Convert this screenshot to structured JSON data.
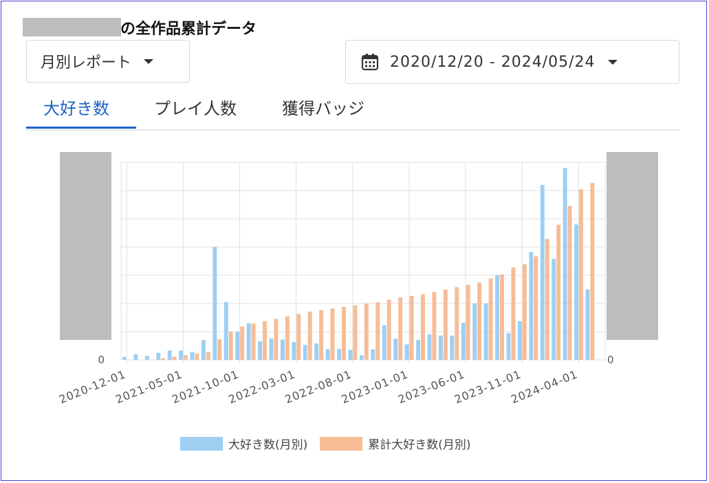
{
  "header": {
    "title": "の全作品累計データ"
  },
  "report_select": {
    "value": "月別レポート"
  },
  "date_range": {
    "value": "2020/12/20 - 2024/05/24"
  },
  "tabs": [
    {
      "label": "大好き数",
      "active": true
    },
    {
      "label": "プレイ人数",
      "active": false
    },
    {
      "label": "獲得バッジ",
      "active": false
    }
  ],
  "colors": {
    "monthly": "#9ecff3",
    "cumulative": "#f6bd97",
    "accent": "#1d63c6"
  },
  "chart_data": {
    "type": "bar",
    "title": "",
    "x_ticks": [
      "2020-12-01",
      "2021-05-01",
      "2021-10-01",
      "2022-03-01",
      "2022-08-01",
      "2023-01-01",
      "2023-06-01",
      "2023-11-01",
      "2024-04-01"
    ],
    "y_left_zero_label": "0",
    "y_right_zero_label": "0",
    "grid": true,
    "legend_position": "bottom",
    "categories": [
      "2020-12",
      "2021-01",
      "2021-02",
      "2021-03",
      "2021-04",
      "2021-05",
      "2021-06",
      "2021-07",
      "2021-08",
      "2021-09",
      "2021-10",
      "2021-11",
      "2021-12",
      "2022-01",
      "2022-02",
      "2022-03",
      "2022-04",
      "2022-05",
      "2022-06",
      "2022-07",
      "2022-08",
      "2022-09",
      "2022-10",
      "2022-11",
      "2022-12",
      "2023-01",
      "2023-02",
      "2023-03",
      "2023-04",
      "2023-05",
      "2023-06",
      "2023-07",
      "2023-08",
      "2023-09",
      "2023-10",
      "2023-11",
      "2023-12",
      "2024-01",
      "2024-02",
      "2024-03",
      "2024-04",
      "2024-05"
    ],
    "series": [
      {
        "name": "大好き数(月別)",
        "axis": "left",
        "values": [
          0.1,
          0.2,
          0.14,
          0.25,
          0.33,
          0.33,
          0.27,
          0.7,
          4.0,
          2.05,
          1.0,
          1.3,
          0.66,
          0.76,
          0.72,
          0.63,
          0.53,
          0.58,
          0.38,
          0.39,
          0.36,
          0.16,
          0.37,
          1.23,
          0.75,
          0.55,
          0.71,
          0.9,
          0.86,
          0.86,
          1.31,
          2.0,
          2.0,
          3.0,
          0.95,
          1.37,
          3.82,
          6.2,
          3.58,
          6.8,
          4.8,
          2.5
        ]
      },
      {
        "name": "累計大好き数(月別)",
        "axis": "right",
        "values": [
          0.0,
          0.0,
          0.0,
          0.1,
          0.2,
          0.3,
          0.4,
          0.5,
          1.3,
          1.8,
          2.1,
          2.3,
          2.45,
          2.6,
          2.75,
          2.9,
          3.05,
          3.15,
          3.25,
          3.35,
          3.45,
          3.55,
          3.65,
          3.8,
          3.95,
          4.05,
          4.15,
          4.3,
          4.45,
          4.6,
          4.75,
          4.9,
          5.15,
          5.4,
          5.85,
          6.05,
          6.55,
          7.65,
          8.55,
          9.75,
          10.8,
          11.2
        ]
      }
    ],
    "ylim_left": [
      0,
      7.0
    ],
    "ylim_right": [
      0,
      12.5
    ]
  },
  "legend": {
    "monthly_label": "大好き数(月別)",
    "cumulative_label": "累計大好き数(月別)"
  }
}
